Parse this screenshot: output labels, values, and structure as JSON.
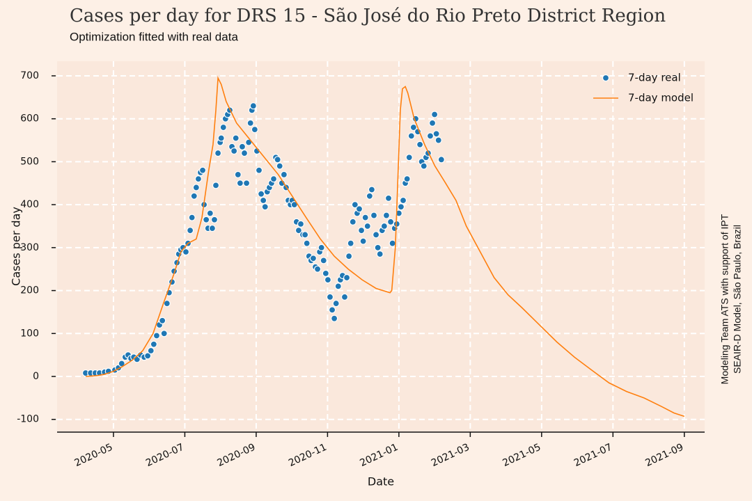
{
  "chart_data": {
    "type": "line",
    "title": "Cases per day for DRS 15 - São José do Rio Preto District Region",
    "subtitle": "Optimization fitted with real data",
    "xlabel": "Date",
    "ylabel": "Cases per day",
    "annotations": [
      "Modeling Team ATS with support of IPT",
      "SEAIR-D Model, São Paulo, Brazil"
    ],
    "xlim": [
      3.42,
      21.57
    ],
    "xticks": [
      {
        "value": 5,
        "label": "2020-05"
      },
      {
        "value": 7,
        "label": "2020-07"
      },
      {
        "value": 9,
        "label": "2020-09"
      },
      {
        "value": 11,
        "label": "2020-11"
      },
      {
        "value": 13,
        "label": "2021-01"
      },
      {
        "value": 15,
        "label": "2021-03"
      },
      {
        "value": 17,
        "label": "2021-05"
      },
      {
        "value": 19,
        "label": "2021-07"
      },
      {
        "value": 21,
        "label": "2021-09"
      }
    ],
    "ylim": [
      -128,
      734
    ],
    "yticks": [
      -100,
      0,
      100,
      200,
      300,
      400,
      500,
      600,
      700
    ],
    "grid": true,
    "legend": "upper right",
    "series": [
      {
        "name": "7-day real",
        "type": "scatter",
        "color": "#1f77b4",
        "x": [
          4.22,
          4.36,
          4.49,
          4.61,
          4.75,
          4.86,
          5.04,
          5.14,
          5.23,
          5.33,
          5.41,
          5.49,
          5.57,
          5.66,
          5.76,
          5.86,
          5.96,
          6.05,
          6.13,
          6.21,
          6.29,
          6.37,
          6.42,
          6.5,
          6.56,
          6.64,
          6.7,
          6.78,
          6.83,
          6.89,
          6.95,
          7.03,
          7.09,
          7.15,
          7.2,
          7.26,
          7.32,
          7.38,
          7.44,
          7.5,
          7.54,
          7.6,
          7.65,
          7.71,
          7.77,
          7.83,
          7.87,
          7.93,
          7.99,
          8.02,
          8.08,
          8.14,
          8.2,
          8.26,
          8.32,
          8.38,
          8.43,
          8.49,
          8.55,
          8.61,
          8.67,
          8.73,
          8.79,
          8.84,
          8.88,
          8.92,
          8.96,
          9.02,
          9.08,
          9.14,
          9.2,
          9.25,
          9.31,
          9.37,
          9.43,
          9.49,
          9.55,
          9.6,
          9.66,
          9.72,
          9.78,
          9.84,
          9.9,
          9.96,
          10.01,
          10.07,
          10.13,
          10.19,
          10.25,
          10.31,
          10.37,
          10.42,
          10.48,
          10.54,
          10.6,
          10.66,
          10.72,
          10.78,
          10.83,
          10.89,
          10.95,
          11.01,
          11.07,
          11.13,
          11.19,
          11.24,
          11.3,
          11.36,
          11.42,
          11.48,
          11.54,
          11.6,
          11.65,
          11.71,
          11.77,
          11.83,
          11.89,
          11.95,
          12.0,
          12.06,
          12.12,
          12.18,
          12.24,
          12.3,
          12.36,
          12.41,
          12.47,
          12.53,
          12.59,
          12.65,
          12.71,
          12.77,
          12.82,
          12.88,
          12.94,
          13.0,
          13.06,
          13.12,
          13.18,
          13.23,
          13.29,
          13.35,
          13.41,
          13.47,
          13.53,
          13.59,
          13.64,
          13.7,
          13.76,
          13.82,
          13.88,
          13.94,
          14.0,
          14.05,
          14.11,
          14.19
        ],
        "values": [
          8,
          8,
          8,
          8,
          10,
          12,
          15,
          20,
          30,
          45,
          50,
          42,
          45,
          40,
          50,
          45,
          48,
          60,
          75,
          95,
          120,
          130,
          100,
          170,
          195,
          220,
          245,
          265,
          285,
          295,
          300,
          290,
          310,
          340,
          370,
          420,
          440,
          460,
          475,
          480,
          400,
          365,
          345,
          380,
          345,
          365,
          445,
          520,
          545,
          555,
          580,
          600,
          610,
          620,
          535,
          525,
          555,
          470,
          450,
          535,
          520,
          450,
          545,
          590,
          620,
          630,
          575,
          525,
          480,
          425,
          410,
          395,
          430,
          440,
          450,
          460,
          510,
          505,
          490,
          450,
          470,
          440,
          410,
          400,
          410,
          400,
          360,
          340,
          355,
          330,
          330,
          310,
          280,
          270,
          275,
          255,
          250,
          290,
          300,
          270,
          240,
          225,
          185,
          155,
          135,
          170,
          210,
          225,
          235,
          185,
          230,
          280,
          310,
          360,
          400,
          380,
          390,
          340,
          315,
          370,
          350,
          420,
          435,
          375,
          330,
          300,
          285,
          340,
          350,
          375,
          415,
          360,
          310,
          345,
          355,
          380,
          395,
          410,
          450,
          460,
          510,
          560,
          580,
          600,
          570,
          540,
          500,
          490,
          510,
          520,
          560,
          590,
          610,
          565,
          550,
          505
        ]
      },
      {
        "name": "7-day model",
        "type": "line",
        "color": "#ff7f0e",
        "x": [
          4.22,
          4.55,
          4.75,
          5.0,
          5.23,
          5.53,
          5.82,
          6.11,
          6.4,
          6.7,
          6.89,
          7.09,
          7.32,
          7.48,
          7.67,
          7.79,
          7.87,
          7.93,
          8.02,
          8.16,
          8.45,
          8.84,
          9.23,
          9.62,
          10.01,
          10.4,
          10.8,
          11.19,
          11.58,
          11.97,
          12.36,
          12.75,
          12.8,
          12.9,
          12.98,
          13.04,
          13.1,
          13.18,
          13.25,
          13.43,
          13.72,
          14.01,
          14.31,
          14.6,
          14.89,
          15.28,
          15.67,
          16.06,
          16.45,
          16.94,
          17.43,
          17.92,
          18.4,
          18.89,
          19.38,
          19.87,
          20.36,
          20.71,
          21.0
        ],
        "values": [
          0,
          2,
          5,
          12,
          22,
          38,
          60,
          100,
          170,
          240,
          290,
          310,
          320,
          370,
          480,
          540,
          620,
          695,
          680,
          640,
          590,
          550,
          510,
          470,
          420,
          370,
          320,
          280,
          250,
          225,
          205,
          195,
          200,
          300,
          480,
          620,
          670,
          675,
          660,
          600,
          540,
          490,
          450,
          410,
          350,
          290,
          230,
          190,
          160,
          120,
          80,
          45,
          15,
          -15,
          -35,
          -50,
          -70,
          -85,
          -93
        ]
      }
    ]
  }
}
